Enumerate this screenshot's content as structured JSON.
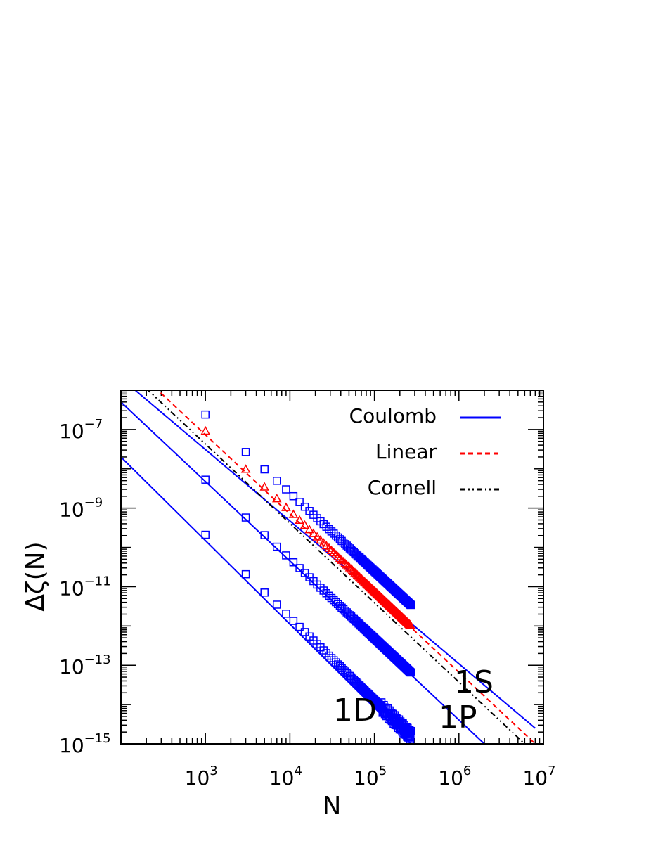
{
  "chart_data": {
    "type": "line",
    "xlabel": "N",
    "ylabel": "Δζ(N)",
    "x_scale": "log",
    "y_scale": "log",
    "xlim": [
      100,
      10000000
    ],
    "ylim": [
      1e-15,
      1e-06
    ],
    "x_ticks": [
      {
        "mantissa": "10",
        "exp": "3"
      },
      {
        "mantissa": "10",
        "exp": "4"
      },
      {
        "mantissa": "10",
        "exp": "5"
      },
      {
        "mantissa": "10",
        "exp": "6"
      },
      {
        "mantissa": "10",
        "exp": "7"
      }
    ],
    "x_tick_values": [
      1000,
      10000,
      100000,
      1000000,
      10000000
    ],
    "y_ticks": [
      {
        "mantissa": "10",
        "exp": "−7"
      },
      {
        "mantissa": "10",
        "exp": "−9"
      },
      {
        "mantissa": "10",
        "exp": "−11"
      },
      {
        "mantissa": "10",
        "exp": "−13"
      },
      {
        "mantissa": "10",
        "exp": "−15"
      }
    ],
    "y_tick_values": [
      1e-07,
      1e-09,
      1e-11,
      1e-13,
      1e-15
    ],
    "legend": {
      "placement": "top-right",
      "entries": [
        {
          "label": "Coulomb",
          "color": "#0000ff",
          "style": "solid"
        },
        {
          "label": "Linear",
          "color": "#ff0000",
          "style": "dashed"
        },
        {
          "label": "Cornell",
          "color": "#000000",
          "style": "dashdotdot"
        }
      ]
    },
    "annotations": [
      "1S",
      "1P",
      "1D"
    ],
    "series": [
      {
        "model": "Coulomb",
        "state": "1S",
        "color": "#0000ff",
        "fit_line": {
          "x": [
            140,
            8000000
          ],
          "y": [
            1.1e-06,
            2.5e-15
          ]
        },
        "markers": {
          "symbol": "square",
          "n_start": 1000,
          "n_end": 270000,
          "y_start": 2.4e-07,
          "y_end": 3.4e-12
        }
      },
      {
        "model": "Linear",
        "state": "1S",
        "color": "#ff0000",
        "fit_line": {
          "x": [
            250,
            8000000
          ],
          "y": [
            1.2e-06,
            1e-15
          ]
        },
        "markers": {
          "symbol": "triangle",
          "n_start": 1000,
          "n_end": 270000,
          "y_start": 9e-08,
          "y_end": 1e-12
        }
      },
      {
        "model": "Cornell",
        "state": "1S",
        "color": "#000000",
        "fit_line": {
          "x": [
            200,
            6000000
          ],
          "y": [
            1.1e-06,
            1e-15
          ]
        }
      },
      {
        "model": "Coulomb",
        "state": "1P",
        "color": "#0000ff",
        "fit_line": {
          "x": [
            100,
            2000000
          ],
          "y": [
            5e-07,
            1e-15
          ]
        },
        "markers": {
          "symbol": "square",
          "n_start": 1000,
          "n_end": 270000,
          "y_start": 5.3e-09,
          "y_end": 6.5e-14
        }
      },
      {
        "model": "Coulomb",
        "state": "1D",
        "color": "#0000ff",
        "fit_line": {
          "x": [
            100,
            270000
          ],
          "y": [
            2e-08,
            1e-15
          ]
        },
        "markers": {
          "symbol": "square",
          "n_start": 1000,
          "n_end": 270000,
          "y_start": 2.1e-10,
          "y_end": 1.6e-15
        }
      }
    ]
  }
}
